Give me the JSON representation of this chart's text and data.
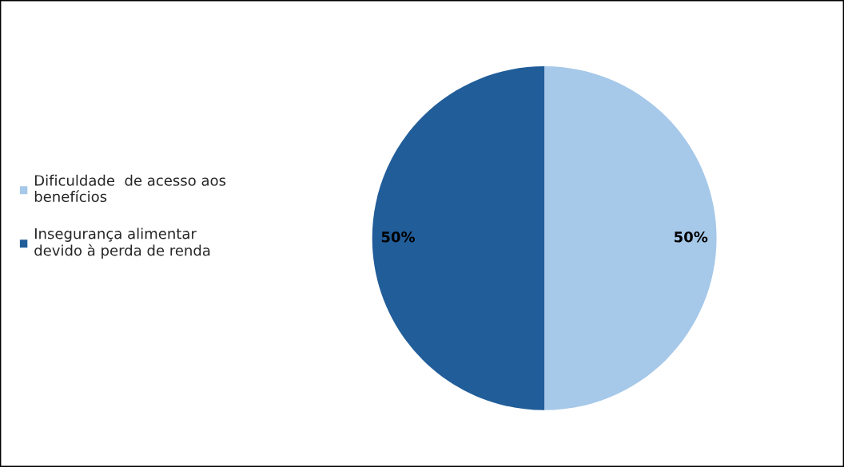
{
  "chart_data": {
    "type": "pie",
    "categories": [
      "Dificuldade  de acesso aos\nbenefícios",
      "Insegurança alimentar\ndevido à perda de renda"
    ],
    "values": [
      50,
      50
    ],
    "colors": [
      "#a6c8e9",
      "#215d99"
    ],
    "value_labels": [
      "50%",
      "50%"
    ],
    "legend": "left"
  }
}
